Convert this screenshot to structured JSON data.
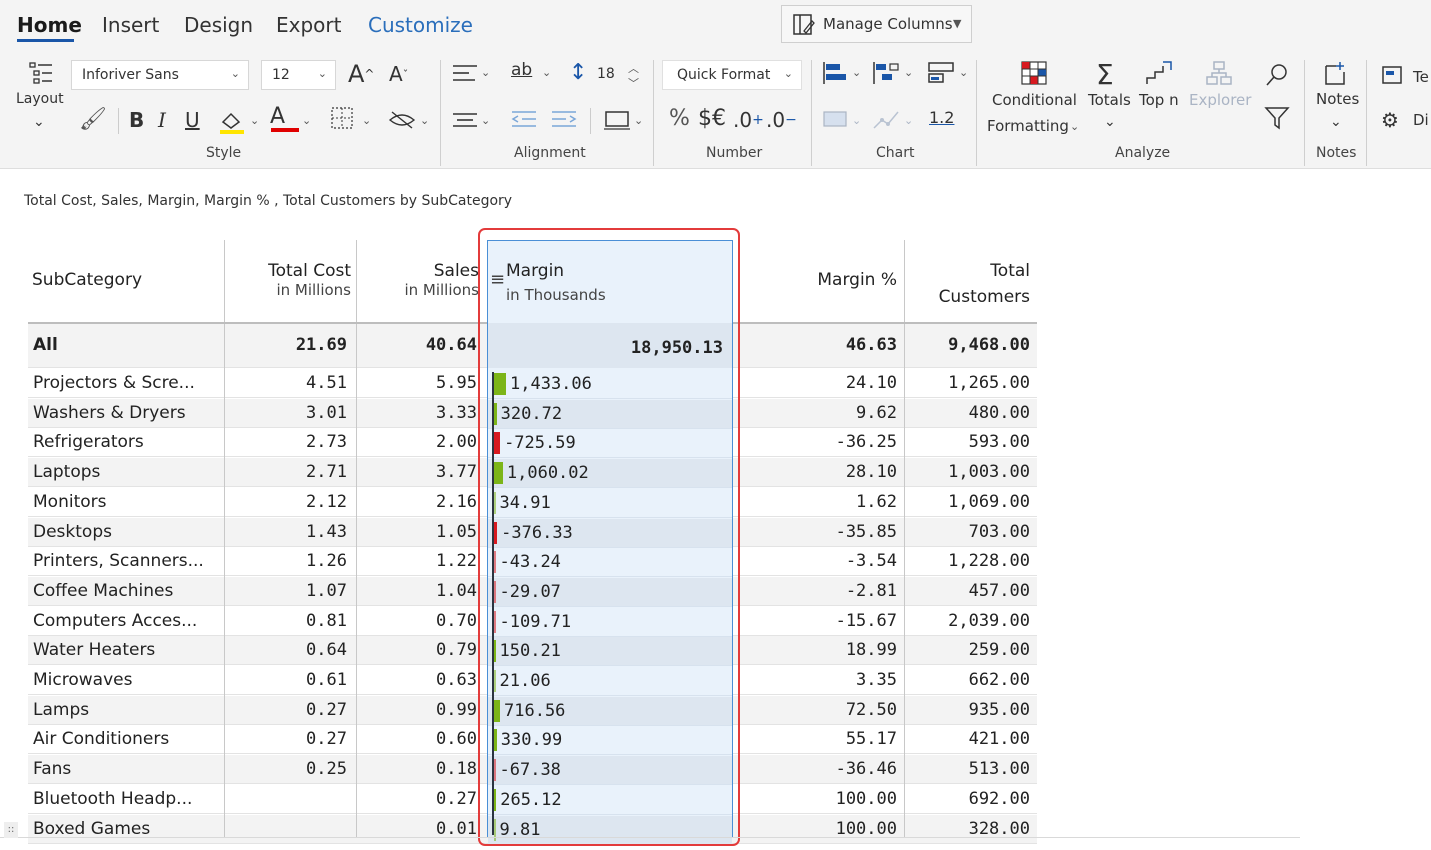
{
  "ribbon": {
    "tabs": [
      "Home",
      "Insert",
      "Design",
      "Export",
      "Customize"
    ],
    "manage_columns": "Manage Columns",
    "layout_label": "Layout",
    "font_name": "Inforiver Sans",
    "font_size": "12",
    "line_height_value": "18",
    "quick_format": "Quick Format",
    "number_symbols": {
      "percent": "%",
      "currency": "$€",
      "inc_decimal": ".0",
      "dec_decimal": ".0"
    },
    "chart_scale": "1.2",
    "conditional_formatting": [
      "Conditional",
      "Formatting"
    ],
    "totals": "Totals",
    "top_n": "Top n",
    "explorer": "Explorer",
    "notes": "Notes",
    "cut_off": [
      "Te",
      "Di"
    ],
    "groups": {
      "style": "Style",
      "alignment": "Alignment",
      "number": "Number",
      "chart": "Chart",
      "analyze": "Analyze",
      "notes": "Notes"
    }
  },
  "report": {
    "title": "Total Cost, Sales, Margin, Margin % , Total Customers by SubCategory",
    "columns": [
      {
        "title": "SubCategory",
        "sub": ""
      },
      {
        "title": "Total Cost",
        "sub": "in Millions"
      },
      {
        "title": "Sales",
        "sub": "in Millions"
      },
      {
        "title": "Margin",
        "sub": "in Thousands"
      },
      {
        "title": "Margin %",
        "sub": ""
      },
      {
        "title": "Total",
        "sub": "Customers"
      }
    ],
    "total_row": {
      "name": "All",
      "cost": "21.69",
      "sales": "40.64",
      "margin": "18,950.13",
      "margin_pct": "46.63",
      "customers": "9,468.00"
    },
    "rows": [
      {
        "name": "Projectors & Scre...",
        "cost": "4.51",
        "sales": "5.95",
        "margin": "1,433.06",
        "margin_pct": "24.10",
        "customers": "1,265.00"
      },
      {
        "name": "Washers & Dryers",
        "cost": "3.01",
        "sales": "3.33",
        "margin": "320.72",
        "margin_pct": "9.62",
        "customers": "480.00"
      },
      {
        "name": "Refrigerators",
        "cost": "2.73",
        "sales": "2.00",
        "margin": "-725.59",
        "margin_pct": "-36.25",
        "customers": "593.00"
      },
      {
        "name": "Laptops",
        "cost": "2.71",
        "sales": "3.77",
        "margin": "1,060.02",
        "margin_pct": "28.10",
        "customers": "1,003.00"
      },
      {
        "name": "Monitors",
        "cost": "2.12",
        "sales": "2.16",
        "margin": "34.91",
        "margin_pct": "1.62",
        "customers": "1,069.00"
      },
      {
        "name": "Desktops",
        "cost": "1.43",
        "sales": "1.05",
        "margin": "-376.33",
        "margin_pct": "-35.85",
        "customers": "703.00"
      },
      {
        "name": "Printers, Scanners...",
        "cost": "1.26",
        "sales": "1.22",
        "margin": "-43.24",
        "margin_pct": "-3.54",
        "customers": "1,228.00"
      },
      {
        "name": "Coffee Machines",
        "cost": "1.07",
        "sales": "1.04",
        "margin": "-29.07",
        "margin_pct": "-2.81",
        "customers": "457.00"
      },
      {
        "name": "Computers Acces...",
        "cost": "0.81",
        "sales": "0.70",
        "margin": "-109.71",
        "margin_pct": "-15.67",
        "customers": "2,039.00"
      },
      {
        "name": "Water Heaters",
        "cost": "0.64",
        "sales": "0.79",
        "margin": "150.21",
        "margin_pct": "18.99",
        "customers": "259.00"
      },
      {
        "name": "Microwaves",
        "cost": "0.61",
        "sales": "0.63",
        "margin": "21.06",
        "margin_pct": "3.35",
        "customers": "662.00"
      },
      {
        "name": "Lamps",
        "cost": "0.27",
        "sales": "0.99",
        "margin": "716.56",
        "margin_pct": "72.50",
        "customers": "935.00"
      },
      {
        "name": "Air Conditioners",
        "cost": "0.27",
        "sales": "0.60",
        "margin": "330.99",
        "margin_pct": "55.17",
        "customers": "421.00"
      },
      {
        "name": "Fans",
        "cost": "0.25",
        "sales": "0.18",
        "margin": "-67.38",
        "margin_pct": "-36.46",
        "customers": "513.00"
      },
      {
        "name": "Bluetooth Headp...",
        "cost": "",
        "sales": "0.27",
        "margin": "265.12",
        "margin_pct": "100.00",
        "customers": "692.00"
      },
      {
        "name": "Boxed Games",
        "cost": "",
        "sales": "0.01",
        "margin": "9.81",
        "margin_pct": "100.00",
        "customers": "328.00"
      }
    ],
    "colors": {
      "positive": "#7cb518",
      "negative": "#d71920",
      "selection": "#e33b3b",
      "column_bg": "#e9f2fb"
    }
  }
}
